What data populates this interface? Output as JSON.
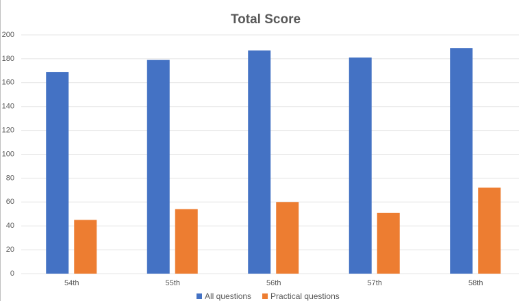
{
  "chart_data": {
    "type": "bar",
    "title": "Total Score",
    "categories": [
      "54th",
      "55th",
      "56th",
      "57th",
      "58th"
    ],
    "series": [
      {
        "name": "All questions",
        "color": "#4472c4",
        "values": [
          169,
          179,
          187,
          181,
          189
        ]
      },
      {
        "name": "Practical questions",
        "color": "#ed7d31",
        "values": [
          45,
          54,
          60,
          51,
          72
        ]
      }
    ],
    "ylim": [
      0,
      200
    ],
    "yticks": [
      0,
      20,
      40,
      60,
      80,
      100,
      120,
      140,
      160,
      180,
      200
    ],
    "grid": true,
    "legend": "bottom"
  }
}
